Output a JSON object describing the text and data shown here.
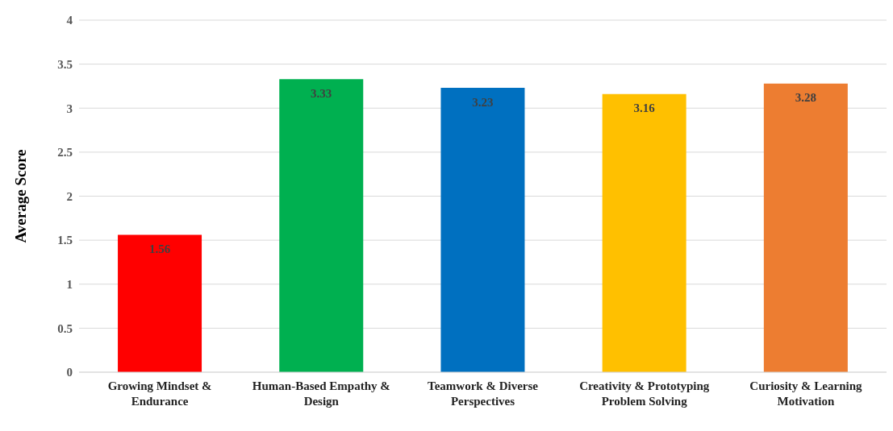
{
  "chart_data": {
    "type": "bar",
    "ylabel": "Average Score",
    "categories": [
      "Growing Mindset & Endurance",
      "Human-Based Empathy & Design",
      "Teamwork & Diverse Perspectives",
      "Creativity & Prototyping Problem Solving",
      "Curiosity & Learning Motivation"
    ],
    "values": [
      1.56,
      3.33,
      3.23,
      3.16,
      3.28
    ],
    "colors": [
      "#ff0000",
      "#00b050",
      "#0070c0",
      "#ffc000",
      "#ed7d31"
    ],
    "ylim": [
      0,
      4
    ],
    "yticks": [
      0,
      0.5,
      1,
      1.5,
      2,
      2.5,
      3,
      3.5,
      4
    ],
    "grid": "y",
    "data_labels": true,
    "legend": false
  }
}
